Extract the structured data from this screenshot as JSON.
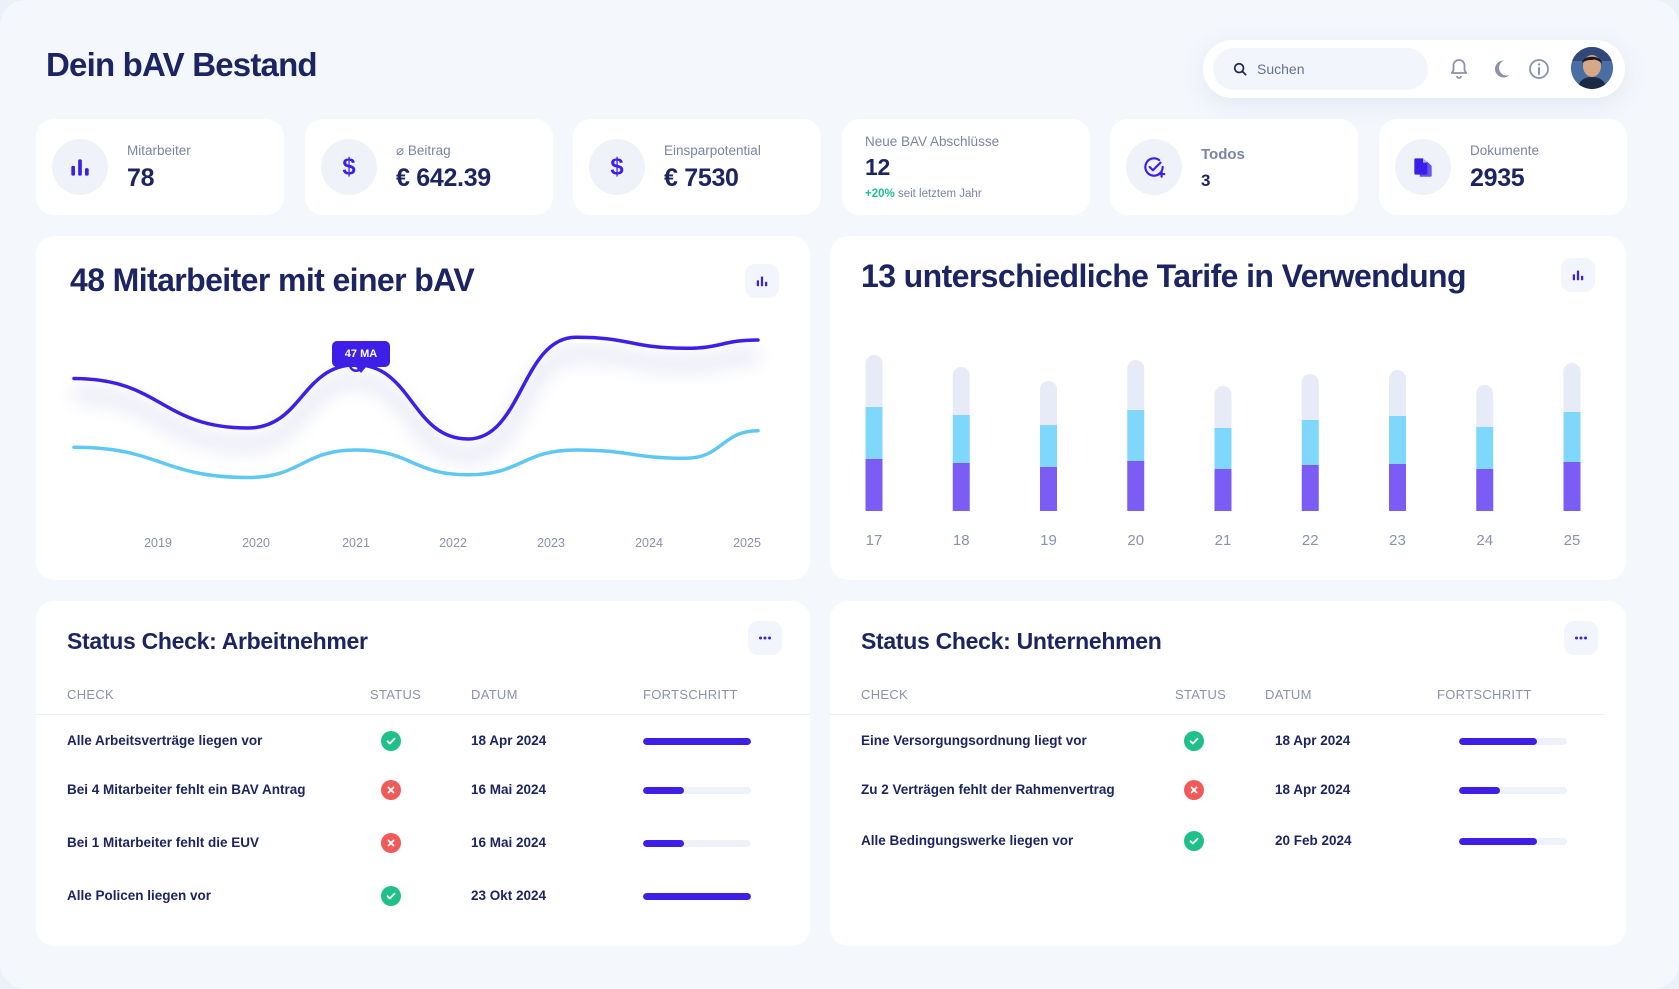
{
  "page": {
    "title": "Dein bAV Bestand"
  },
  "topbar": {
    "search_placeholder": "Suchen",
    "icons": [
      "search-icon",
      "bell-icon",
      "moon-icon",
      "info-icon",
      "avatar"
    ]
  },
  "stats": [
    {
      "label": "Mitarbeiter",
      "value": "78",
      "icon": "bar-chart-icon"
    },
    {
      "label": "⌀ Beitrag",
      "value": "€ 642.39",
      "icon": "dollar-icon"
    },
    {
      "label": "Einsparpotential",
      "value": "€ 7530",
      "icon": "dollar-icon"
    },
    {
      "label": "Neue BAV Abschlüsse",
      "value": "12",
      "trend_value": "+20%",
      "trend_text": "seit letztem Jahr"
    },
    {
      "label": "Todos",
      "value": "3",
      "icon": "check-plus-icon"
    },
    {
      "label": "Dokumente",
      "value": "2935",
      "icon": "documents-icon"
    }
  ],
  "employees_chart": {
    "title": "48 Mitarbeiter mit einer bAV",
    "tooltip": "47 MA",
    "chart_data": {
      "type": "line",
      "x": [
        "2019",
        "2020",
        "2021",
        "2022",
        "2023",
        "2024",
        "2025"
      ],
      "series": [
        {
          "values": [
            3,
            1.2,
            3.5,
            0.8,
            4.5,
            4.1,
            4.4
          ]
        },
        {
          "values": [
            0.5,
            -0.6,
            0.4,
            -0.5,
            0.4,
            0.1,
            1.1
          ]
        }
      ]
    }
  },
  "tariffs_chart": {
    "title": "13 unterschiedliche Tarife in Verwendung",
    "chart_data": {
      "type": "bar",
      "stacked": true,
      "categories": [
        "17",
        "18",
        "19",
        "20",
        "21",
        "22",
        "23",
        "24",
        "25"
      ],
      "series": [
        {
          "values": [
            52,
            48,
            44,
            50,
            42,
            46,
            47,
            42,
            49
          ],
          "color": "#7b5cf5"
        },
        {
          "values": [
            52,
            48,
            42,
            51,
            41,
            45,
            48,
            42,
            50
          ],
          "color": "#7fd7fb"
        },
        {
          "values": [
            52,
            48,
            44,
            50,
            42,
            46,
            46,
            42,
            49
          ],
          "color": "#e6ebf7"
        }
      ],
      "ylim": [
        0,
        160
      ]
    }
  },
  "status_employees": {
    "title": "Status Check: Arbeitnehmer",
    "columns": [
      "CHECK",
      "STATUS",
      "DATUM",
      "FORTSCHRITT"
    ],
    "rows": [
      {
        "check": "Alle Arbeitsverträge liegen vor",
        "status": "ok",
        "date": "18 Apr 2024",
        "progress": 1.0
      },
      {
        "check": "Bei 4 Mitarbeiter fehlt ein BAV Antrag",
        "status": "error",
        "date": "16 Mai 2024",
        "progress": 0.38
      },
      {
        "check": "Bei 1 Mitarbeiter fehlt die EUV",
        "status": "error",
        "date": "16 Mai 2024",
        "progress": 0.38
      },
      {
        "check": "Alle Policen liegen vor",
        "status": "ok",
        "date": "23 Okt 2024",
        "progress": 1.0
      }
    ]
  },
  "status_company": {
    "title": "Status Check: Unternehmen",
    "columns": [
      "CHECK",
      "STATUS",
      "DATUM",
      "FORTSCHRITT"
    ],
    "rows": [
      {
        "check": "Eine Versorgungsordnung liegt vor",
        "status": "ok",
        "date": "18 Apr 2024",
        "progress": 0.72
      },
      {
        "check": "Zu 2 Verträgen fehlt der Rahmenvertrag",
        "status": "error",
        "date": "18 Apr 2024",
        "progress": 0.38
      },
      {
        "check": "Alle Bedingungswerke liegen vor",
        "status": "ok",
        "date": "20 Feb 2024",
        "progress": 0.72
      }
    ]
  },
  "colors": {
    "primary": "#3d1fe8",
    "navy": "#1c2562",
    "ok": "#1fc08a",
    "error": "#ef5b5b",
    "line_secondary": "#5ec8f2"
  }
}
